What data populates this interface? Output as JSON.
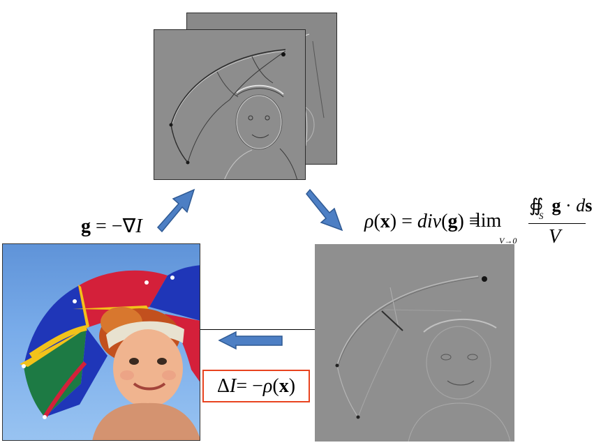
{
  "formulas": {
    "gradient": {
      "lhs": "g",
      "eq": " = −∇",
      "var": "I"
    },
    "divergence": {
      "rho": "ρ",
      "open": "(",
      "x": "x",
      "close": ")",
      "eq": " = ",
      "div": "div",
      "gopen": "(",
      "g": "g",
      "gclose": ")",
      "equiv": " ≡ ",
      "lim": "lim",
      "lim_sub": "V→0",
      "numerator_integral": "∯",
      "numerator_sub": "S",
      "numerator_g": "g",
      "numerator_dot": " · ",
      "numerator_d": "d",
      "numerator_s": "s",
      "denominator": "V"
    },
    "poisson": {
      "delta": "Δ",
      "I": "I",
      "eq": " = −",
      "rho": "ρ",
      "open": "(",
      "x": "x",
      "close": ")"
    }
  },
  "colors": {
    "arrow_fill": "#4d7fc4",
    "arrow_stroke": "#2f5a94",
    "box_border": "#e8431f",
    "gradient_image_gray": "#8d8d8d",
    "umbrella_red": "#d4203a",
    "umbrella_yellow": "#f2c21a",
    "umbrella_blue": "#1f36b8",
    "umbrella_green": "#1d7a44",
    "sky_blue": "#79acea"
  },
  "icons": {
    "arrow_up": "arrow-up-right-icon",
    "arrow_down": "arrow-down-right-icon",
    "arrow_left": "arrow-left-icon"
  }
}
